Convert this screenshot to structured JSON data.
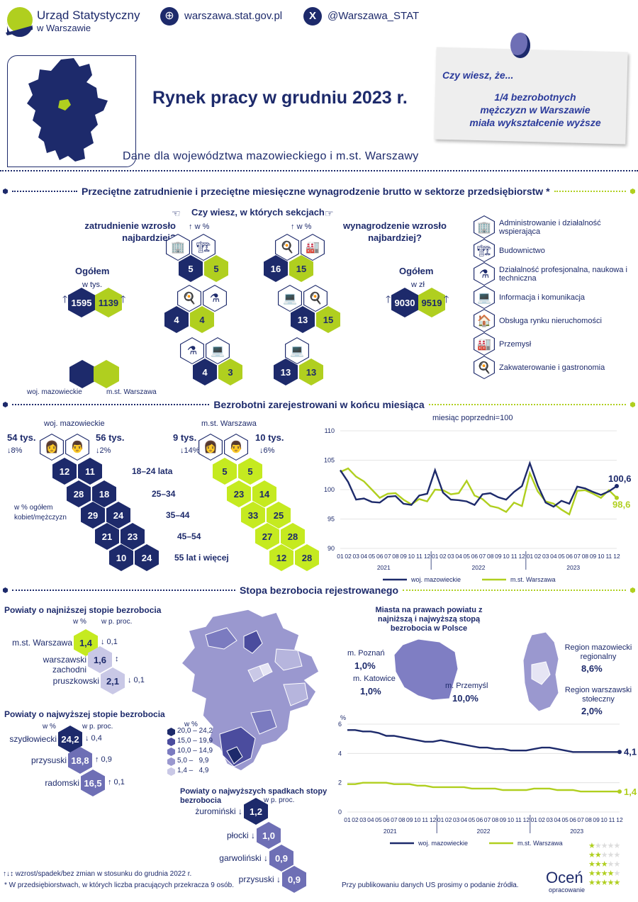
{
  "header": {
    "org_line1": "Urząd Statystyczny",
    "org_line2": "w Warszawie",
    "website": "warszawa.stat.gov.pl",
    "twitter": "@Warszawa_STAT",
    "title": "Rynek pracy w grudniu 2023 r.",
    "subtitle": "Dane dla województwa mazowieckiego i m.st. Warszawy"
  },
  "note": {
    "title": "Czy wiesz, że...",
    "line1": "1/4 bezrobotnych",
    "line2": "mężczyzn w Warszawie",
    "line3": "miała wykształcenie wyższe"
  },
  "sec1": {
    "title": "Przeciętne zatrudnienie i przeciętne miesięczne wynagrodzenie brutto w sektorze przedsiębiorstw *",
    "question": "Czy wiesz, w których sekcjach",
    "emp_q": "zatrudnienie wzrosło najbardziej?",
    "wage_q": "wynagrodzenie wzrosło najbardziej?",
    "pct": "w %",
    "total": "Ogółem",
    "unit_emp": "w tys.",
    "unit_wage": "w zł",
    "emp_maz": "1595",
    "emp_waw": "1139",
    "wage_maz": "9030",
    "wage_waw": "9519",
    "emp_vals": [
      [
        "5",
        "5"
      ],
      [
        "4",
        "4"
      ],
      [
        "4",
        "3"
      ]
    ],
    "wage_vals": [
      [
        "16",
        "15"
      ],
      [
        "13",
        "15"
      ],
      [
        "13",
        "13"
      ]
    ],
    "legend_maz": "woj. mazowieckie",
    "legend_waw": "m.st. Warszawa",
    "sections": [
      "Administrowanie i działalność wspierająca",
      "Budownictwo",
      "Działalność profesjonalna, naukowa i techniczna",
      "Informacja i komunikacja",
      "Obsługa rynku nieruchomości",
      "Przemysł",
      "Zakwaterowanie i gastronomia"
    ]
  },
  "sec2": {
    "title": "Bezrobotni zarejestrowani w końcu miesiąca",
    "maz_label": "woj. mazowieckie",
    "waw_label": "m.st. Warszawa",
    "maz_women": "54 tys.",
    "maz_women_chg": "8%",
    "maz_men": "56 tys.",
    "maz_men_chg": "2%",
    "waw_women": "9 tys.",
    "waw_women_chg": "14%",
    "waw_men": "10 tys.",
    "waw_men_chg": "6%",
    "age_groups": [
      "18–24 lata",
      "25–34",
      "35–44",
      "45–54",
      "55 lat i więcej"
    ],
    "maz_w": [
      "12",
      "28",
      "29",
      "21",
      "10"
    ],
    "maz_m": [
      "11",
      "18",
      "24",
      "23",
      "24"
    ],
    "waw_w": [
      "5",
      "23",
      "33",
      "27",
      "12"
    ],
    "waw_m": [
      "5",
      "14",
      "25",
      "28",
      "28"
    ],
    "pct_note": "w % ogółem kobiet/mężczyzn",
    "chart_note": "miesiąc poprzedni=100",
    "last_maz": "100,6",
    "last_waw": "98,6"
  },
  "sec3": {
    "title": "Stopa bezrobocia rejestrowanego",
    "low_title": "Powiaty o najniższej stopie bezrobocia",
    "high_title": "Powiaty o najwyższej stopie bezrobocia",
    "drop_title": "Powiaty o najwyższych spadkach stopy bezrobocia",
    "col_pct": "w %",
    "col_pp": "w p. proc.",
    "low": [
      {
        "name": "m.st. Warszawa",
        "val": "1,4",
        "chg": "0,1"
      },
      {
        "name": "warszawski zachodni",
        "val": "1,6",
        "chg": ""
      },
      {
        "name": "pruszkowski",
        "val": "2,1",
        "chg": "0,1"
      }
    ],
    "high": [
      {
        "name": "szydłowiecki",
        "val": "24,2",
        "chg": "0,4"
      },
      {
        "name": "przysuski",
        "val": "18,8",
        "chg": "0,9"
      },
      {
        "name": "radomski",
        "val": "16,5",
        "chg": "0,1"
      }
    ],
    "drop": [
      {
        "name": "żuromiński",
        "val": "1,2"
      },
      {
        "name": "płocki",
        "val": "1,0"
      },
      {
        "name": "garwoliński",
        "val": "0,9"
      },
      {
        "name": "przysuski",
        "val": "0,9"
      }
    ],
    "map_legend_title": "w %",
    "map_legend": [
      "20,0 – 24,2",
      "15,0 – 19,9",
      "10,0 – 14,9",
      "5,0 –   9,9",
      "1,4 –   4,9"
    ],
    "cities_title": "Miasta na prawach powiatu z najniższą i najwyższą stopą bezrobocia w Polsce",
    "cities": [
      {
        "name": "m. Poznań",
        "val": "1,0%"
      },
      {
        "name": "m. Katowice",
        "val": "1,0%"
      },
      {
        "name": "m. Przemyśl",
        "val": "10,0%"
      }
    ],
    "regions": [
      {
        "name": "Region mazowiecki regionalny",
        "val": "8,6%"
      },
      {
        "name": "Region warszawski stołeczny",
        "val": "2,0%"
      }
    ],
    "last_maz": "4,1",
    "last_waw": "1,4"
  },
  "footer": {
    "legend": "wzrost/spadek/bez zmian w stosunku do grudnia 2022 r.",
    "note": "* W przedsiębiorstwach, w których liczba pracujących przekracza 9 osób.",
    "publish": "Przy publikowaniu danych US prosimy o podanie źródła.",
    "rate": "Oceń",
    "rate_sub": "opracowanie"
  },
  "chart_data": [
    {
      "type": "line",
      "title": "",
      "note": "miesiąc poprzedni=100",
      "ylim": [
        90,
        110
      ],
      "yticks": [
        90,
        95,
        100,
        105,
        110
      ],
      "x": [
        "01",
        "02",
        "03",
        "04",
        "05",
        "06",
        "07",
        "08",
        "09",
        "10",
        "11",
        "12",
        "01",
        "02",
        "03",
        "04",
        "05",
        "06",
        "07",
        "08",
        "09",
        "10",
        "11",
        "12",
        "01",
        "02",
        "03",
        "04",
        "05",
        "06",
        "07",
        "08",
        "09",
        "10",
        "11",
        "12"
      ],
      "years": [
        "2021",
        "2022",
        "2023"
      ],
      "series": [
        {
          "name": "woj. mazowieckie",
          "color": "#1d2a6b",
          "values": [
            103.3,
            101.3,
            98.3,
            98.5,
            97.9,
            97.8,
            98.8,
            98.9,
            97.6,
            97.4,
            99.0,
            99.3,
            103.3,
            99.5,
            98.3,
            98.2,
            98.0,
            97.4,
            99.2,
            99.4,
            98.7,
            98.3,
            99.6,
            100.6,
            104.5,
            100.7,
            97.8,
            97.1,
            98.1,
            97.6,
            100.5,
            100.2,
            99.6,
            99.1,
            99.7,
            100.6
          ]
        },
        {
          "name": "m.st. Warszawa",
          "color": "#b0cf1f",
          "values": [
            103.0,
            103.6,
            102.2,
            101.4,
            100.0,
            98.6,
            99.3,
            99.4,
            98.3,
            97.5,
            98.4,
            98.0,
            100.0,
            99.9,
            99.2,
            99.4,
            101.5,
            99.0,
            98.4,
            97.2,
            96.9,
            96.2,
            97.8,
            97.2,
            102.8,
            99.7,
            98.0,
            97.6,
            96.6,
            95.8,
            99.8,
            99.9,
            99.3,
            98.6,
            99.9,
            98.6
          ]
        }
      ]
    },
    {
      "type": "line",
      "title": "",
      "ylabel": "%",
      "ylim": [
        0,
        6
      ],
      "yticks": [
        0,
        2,
        4,
        6
      ],
      "x": [
        "01",
        "02",
        "03",
        "04",
        "05",
        "06",
        "07",
        "08",
        "09",
        "10",
        "11",
        "12",
        "01",
        "02",
        "03",
        "04",
        "05",
        "06",
        "07",
        "08",
        "09",
        "10",
        "11",
        "12",
        "01",
        "02",
        "03",
        "04",
        "05",
        "06",
        "07",
        "08",
        "09",
        "10",
        "11",
        "12"
      ],
      "years": [
        "2021",
        "2022",
        "2023"
      ],
      "series": [
        {
          "name": "woj. mazowieckie",
          "color": "#1d2a6b",
          "values": [
            5.6,
            5.6,
            5.5,
            5.5,
            5.4,
            5.2,
            5.2,
            5.1,
            5.0,
            4.9,
            4.8,
            4.8,
            4.9,
            4.8,
            4.7,
            4.6,
            4.5,
            4.4,
            4.4,
            4.3,
            4.3,
            4.2,
            4.2,
            4.2,
            4.3,
            4.4,
            4.4,
            4.3,
            4.2,
            4.1,
            4.1,
            4.1,
            4.1,
            4.1,
            4.1,
            4.1
          ]
        },
        {
          "name": "m.st. Warszawa",
          "color": "#b0cf1f",
          "values": [
            1.9,
            1.9,
            2.0,
            2.0,
            2.0,
            2.0,
            1.9,
            1.9,
            1.9,
            1.8,
            1.8,
            1.7,
            1.7,
            1.7,
            1.7,
            1.7,
            1.6,
            1.6,
            1.6,
            1.6,
            1.5,
            1.5,
            1.5,
            1.5,
            1.6,
            1.6,
            1.6,
            1.5,
            1.5,
            1.5,
            1.4,
            1.4,
            1.4,
            1.4,
            1.4,
            1.4
          ]
        }
      ]
    }
  ]
}
